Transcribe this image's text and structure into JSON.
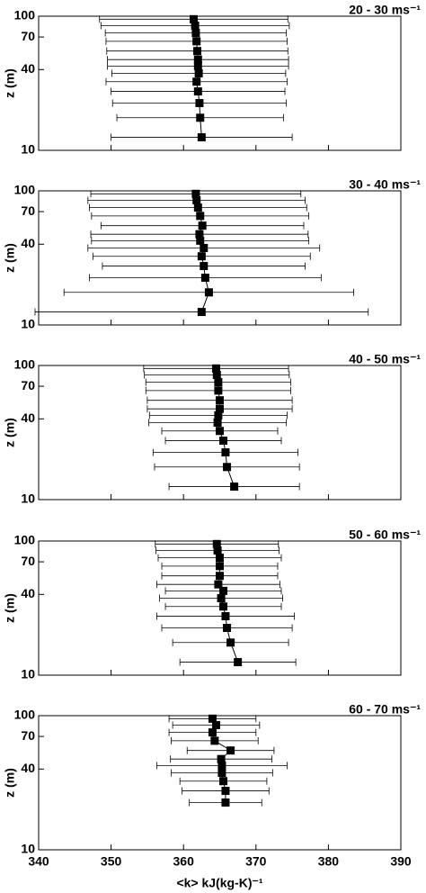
{
  "chart_data": [
    {
      "type": "errorbar",
      "title": "20 - 30 ms⁻¹",
      "ylabel": "z (m)",
      "log_y": true,
      "xlim": [
        340,
        390
      ],
      "xticks": [
        340,
        350,
        360,
        370,
        380,
        390
      ],
      "ylim": [
        10,
        100
      ],
      "yticks": [
        10,
        40,
        70,
        100
      ],
      "z": [
        12.5,
        17.5,
        22.5,
        27.5,
        32.5,
        37.5,
        42.5,
        47.5,
        55,
        65,
        75,
        85,
        95
      ],
      "values": [
        362.5,
        362.3,
        362.2,
        362.0,
        361.8,
        362.1,
        362.0,
        362.0,
        361.9,
        361.8,
        361.7,
        361.6,
        361.4
      ],
      "errors": [
        12.5,
        11.5,
        12,
        12,
        12.5,
        12,
        12.5,
        12.5,
        12.5,
        12.5,
        12.5,
        13,
        13
      ]
    },
    {
      "type": "errorbar",
      "title": "30 - 40 ms⁻¹",
      "ylabel": "z (m)",
      "log_y": true,
      "xlim": [
        340,
        390
      ],
      "xticks": [
        340,
        350,
        360,
        370,
        380,
        390
      ],
      "ylim": [
        10,
        100
      ],
      "yticks": [
        10,
        40,
        70,
        100
      ],
      "z": [
        12.5,
        17.5,
        22.5,
        27.5,
        32.5,
        37.5,
        42.5,
        47.5,
        55,
        65,
        75,
        85,
        95
      ],
      "values": [
        362.5,
        363.5,
        363,
        362.8,
        362.5,
        362.8,
        362.3,
        362.2,
        362.6,
        362.3,
        362.0,
        361.8,
        361.7
      ],
      "errors": [
        23,
        20,
        16,
        14,
        15,
        16,
        15,
        15,
        14,
        15,
        15,
        15,
        14.5
      ]
    },
    {
      "type": "errorbar",
      "title": "40 - 50 ms⁻¹",
      "ylabel": "z (m)",
      "log_y": true,
      "xlim": [
        340,
        390
      ],
      "xticks": [
        340,
        350,
        360,
        370,
        380,
        390
      ],
      "ylim": [
        10,
        100
      ],
      "yticks": [
        10,
        40,
        70,
        100
      ],
      "z": [
        12.5,
        17.5,
        22.5,
        27.5,
        32.5,
        37.5,
        42.5,
        47.5,
        55,
        65,
        75,
        85,
        95
      ],
      "values": [
        367,
        366,
        365.8,
        365.5,
        365,
        364.7,
        364.8,
        365,
        365,
        364.8,
        364.8,
        364.6,
        364.5
      ],
      "errors": [
        9,
        10,
        10,
        8,
        8,
        9.5,
        9.5,
        10,
        10,
        10,
        10,
        10,
        10
      ]
    },
    {
      "type": "errorbar",
      "title": "50 - 60 ms⁻¹",
      "ylabel": "z (m)",
      "log_y": true,
      "xlim": [
        340,
        390
      ],
      "xticks": [
        340,
        350,
        360,
        370,
        380,
        390
      ],
      "ylim": [
        10,
        100
      ],
      "yticks": [
        10,
        40,
        70,
        100
      ],
      "z": [
        12.5,
        17.5,
        22.5,
        27.5,
        32.5,
        37.5,
        42.5,
        47.5,
        55,
        65,
        75,
        85,
        95
      ],
      "values": [
        367.5,
        366.5,
        366,
        365.8,
        365.5,
        365.2,
        365.5,
        364.8,
        365,
        365,
        365,
        364.7,
        364.6
      ],
      "errors": [
        8,
        8,
        9,
        9.5,
        8,
        8.5,
        8,
        8.5,
        8,
        8,
        8.5,
        8.5,
        8.5
      ]
    },
    {
      "type": "errorbar",
      "title": "60 - 70 ms⁻¹",
      "ylabel": "z (m)",
      "xlabel": "<k> kJ(kg-K)⁻¹",
      "log_y": true,
      "xlim": [
        340,
        390
      ],
      "xticks": [
        340,
        350,
        360,
        370,
        380,
        390
      ],
      "ylim": [
        10,
        100
      ],
      "yticks": [
        10,
        40,
        70,
        100
      ],
      "z": [
        12.5,
        17.5,
        22.5,
        27.5,
        32.5,
        37.5,
        42.5,
        47.5,
        55,
        65,
        75,
        85,
        95
      ],
      "values": [
        null,
        null,
        365.8,
        365.8,
        365.5,
        365.3,
        365.3,
        365.2,
        366.5,
        364.3,
        364,
        364.5,
        364
      ],
      "errors": [
        null,
        null,
        5,
        6,
        6,
        7,
        9,
        7,
        6,
        6,
        6,
        6,
        6
      ]
    }
  ]
}
